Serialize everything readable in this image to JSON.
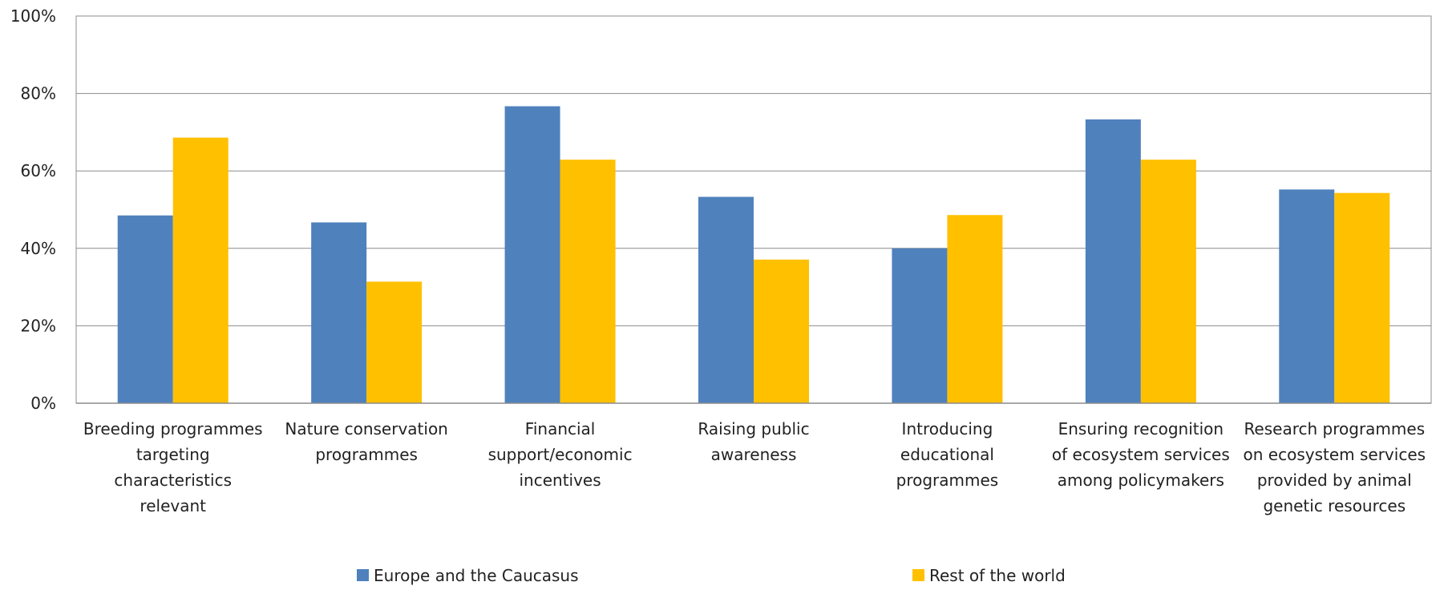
{
  "chart_data": {
    "type": "bar",
    "title": "",
    "xlabel": "",
    "ylabel": "",
    "ylim": [
      0,
      100
    ],
    "yticks": [
      "0%",
      "20%",
      "40%",
      "60%",
      "80%",
      "100%"
    ],
    "grid": true,
    "legend_position": "bottom",
    "categories": [
      [
        "Breeding programmes",
        "targeting",
        "characteristics",
        "relevant"
      ],
      [
        "Nature conservation",
        "programmes"
      ],
      [
        "Financial",
        "support/economic",
        "incentives"
      ],
      [
        "Raising public",
        "awareness"
      ],
      [
        "Introducing",
        "educational",
        "programmes"
      ],
      [
        "Ensuring recognition",
        "of ecosystem services",
        "among policymakers"
      ],
      [
        "Research programmes",
        "on ecosystem services",
        "provided by animal",
        "genetic resources"
      ]
    ],
    "series": [
      {
        "name": "Europe and the Caucasus",
        "color": "#4F81BD",
        "values": [
          48.5,
          46.7,
          76.7,
          53.3,
          40.0,
          73.3,
          55.2
        ]
      },
      {
        "name": "Rest of the world",
        "color": "#FFC000",
        "values": [
          68.6,
          31.4,
          62.9,
          37.1,
          48.6,
          62.9,
          54.3
        ]
      }
    ]
  }
}
